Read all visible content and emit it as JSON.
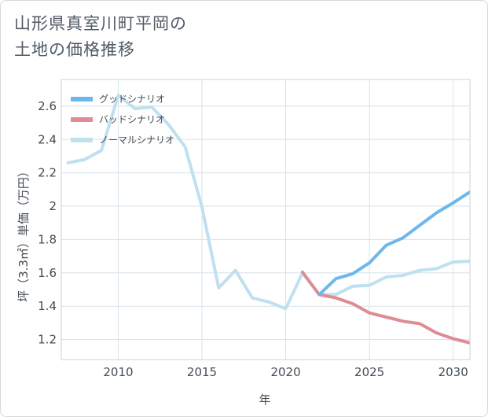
{
  "title": {
    "line1": "山形県真室川町平岡の",
    "line2": "土地の価格推移"
  },
  "chart_data": {
    "type": "line",
    "xlabel": "年",
    "ylabel": "坪（3.3㎡）単価（万円）",
    "xlim": [
      2006.6,
      2031
    ],
    "ylim": [
      1.08,
      2.76
    ],
    "xticks": [
      2010,
      2015,
      2020,
      2025,
      2030
    ],
    "yticks": [
      1.2,
      1.4,
      1.6,
      1.8,
      2,
      2.2,
      2.4,
      2.6
    ],
    "grid": true,
    "legend_position": "top-left",
    "series": [
      {
        "name": "グッドシナリオ",
        "color": "#6cb8ec",
        "x": [
          2022,
          2023,
          2024,
          2025,
          2026,
          2027,
          2028,
          2029,
          2030,
          2031
        ],
        "y": [
          1.47,
          1.565,
          1.595,
          1.66,
          1.765,
          1.81,
          1.885,
          1.96,
          2.02,
          2.085
        ]
      },
      {
        "name": "バッドシナリオ",
        "color": "#de8d94",
        "x": [
          2021,
          2022,
          2023,
          2024,
          2025,
          2026,
          2027,
          2028,
          2029,
          2030,
          2031
        ],
        "y": [
          1.605,
          1.47,
          1.45,
          1.415,
          1.36,
          1.335,
          1.31,
          1.295,
          1.24,
          1.205,
          1.18
        ]
      },
      {
        "name": "ノーマルシナリオ",
        "color": "#bfe0ef",
        "x": [
          2007,
          2008,
          2009,
          2010,
          2011,
          2012,
          2013,
          2014,
          2015,
          2016,
          2017,
          2018,
          2019,
          2020,
          2021,
          2022,
          2023,
          2024,
          2025,
          2026,
          2027,
          2028,
          2029,
          2030,
          2031
        ],
        "y": [
          2.26,
          2.28,
          2.335,
          2.665,
          2.585,
          2.595,
          2.49,
          2.355,
          1.995,
          1.51,
          1.615,
          1.45,
          1.425,
          1.385,
          1.6,
          1.47,
          1.47,
          1.52,
          1.525,
          1.575,
          1.585,
          1.615,
          1.625,
          1.665,
          1.67
        ]
      }
    ]
  }
}
